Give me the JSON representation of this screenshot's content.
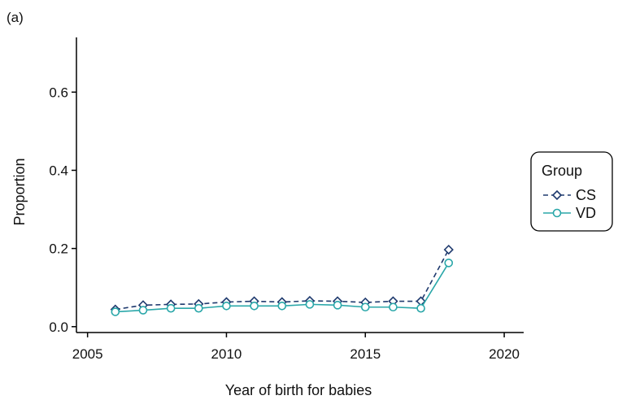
{
  "panel_label": "(a)",
  "chart_data": {
    "type": "line",
    "xlabel": "Year of birth for babies",
    "ylabel": "Proportion",
    "xlim": [
      2004.6,
      2020.7
    ],
    "ylim": [
      -0.015,
      0.74
    ],
    "x_ticks": [
      2005,
      2010,
      2015,
      2020
    ],
    "y_ticks": [
      0.0,
      0.2,
      0.4,
      0.6
    ],
    "x_tick_labels": [
      "2005",
      "2010",
      "2015",
      "2020"
    ],
    "y_tick_labels": [
      "0.0",
      "0.2",
      "0.4",
      "0.6"
    ],
    "x": [
      2006,
      2007,
      2008,
      2009,
      2010,
      2011,
      2012,
      2013,
      2014,
      2015,
      2016,
      2017,
      2018
    ],
    "series": [
      {
        "name": "CS",
        "color": "#1f3a6e",
        "line_style": "dashed",
        "marker": "diamond",
        "values": [
          0.044,
          0.055,
          0.057,
          0.058,
          0.063,
          0.065,
          0.063,
          0.066,
          0.065,
          0.062,
          0.065,
          0.065,
          0.197
        ]
      },
      {
        "name": "VD",
        "color": "#2aa7a9",
        "line_style": "solid",
        "marker": "circle",
        "values": [
          0.038,
          0.042,
          0.047,
          0.047,
          0.053,
          0.053,
          0.053,
          0.057,
          0.055,
          0.05,
          0.05,
          0.047,
          0.163
        ]
      }
    ],
    "legend": {
      "title": "Group",
      "placement": "right"
    }
  }
}
